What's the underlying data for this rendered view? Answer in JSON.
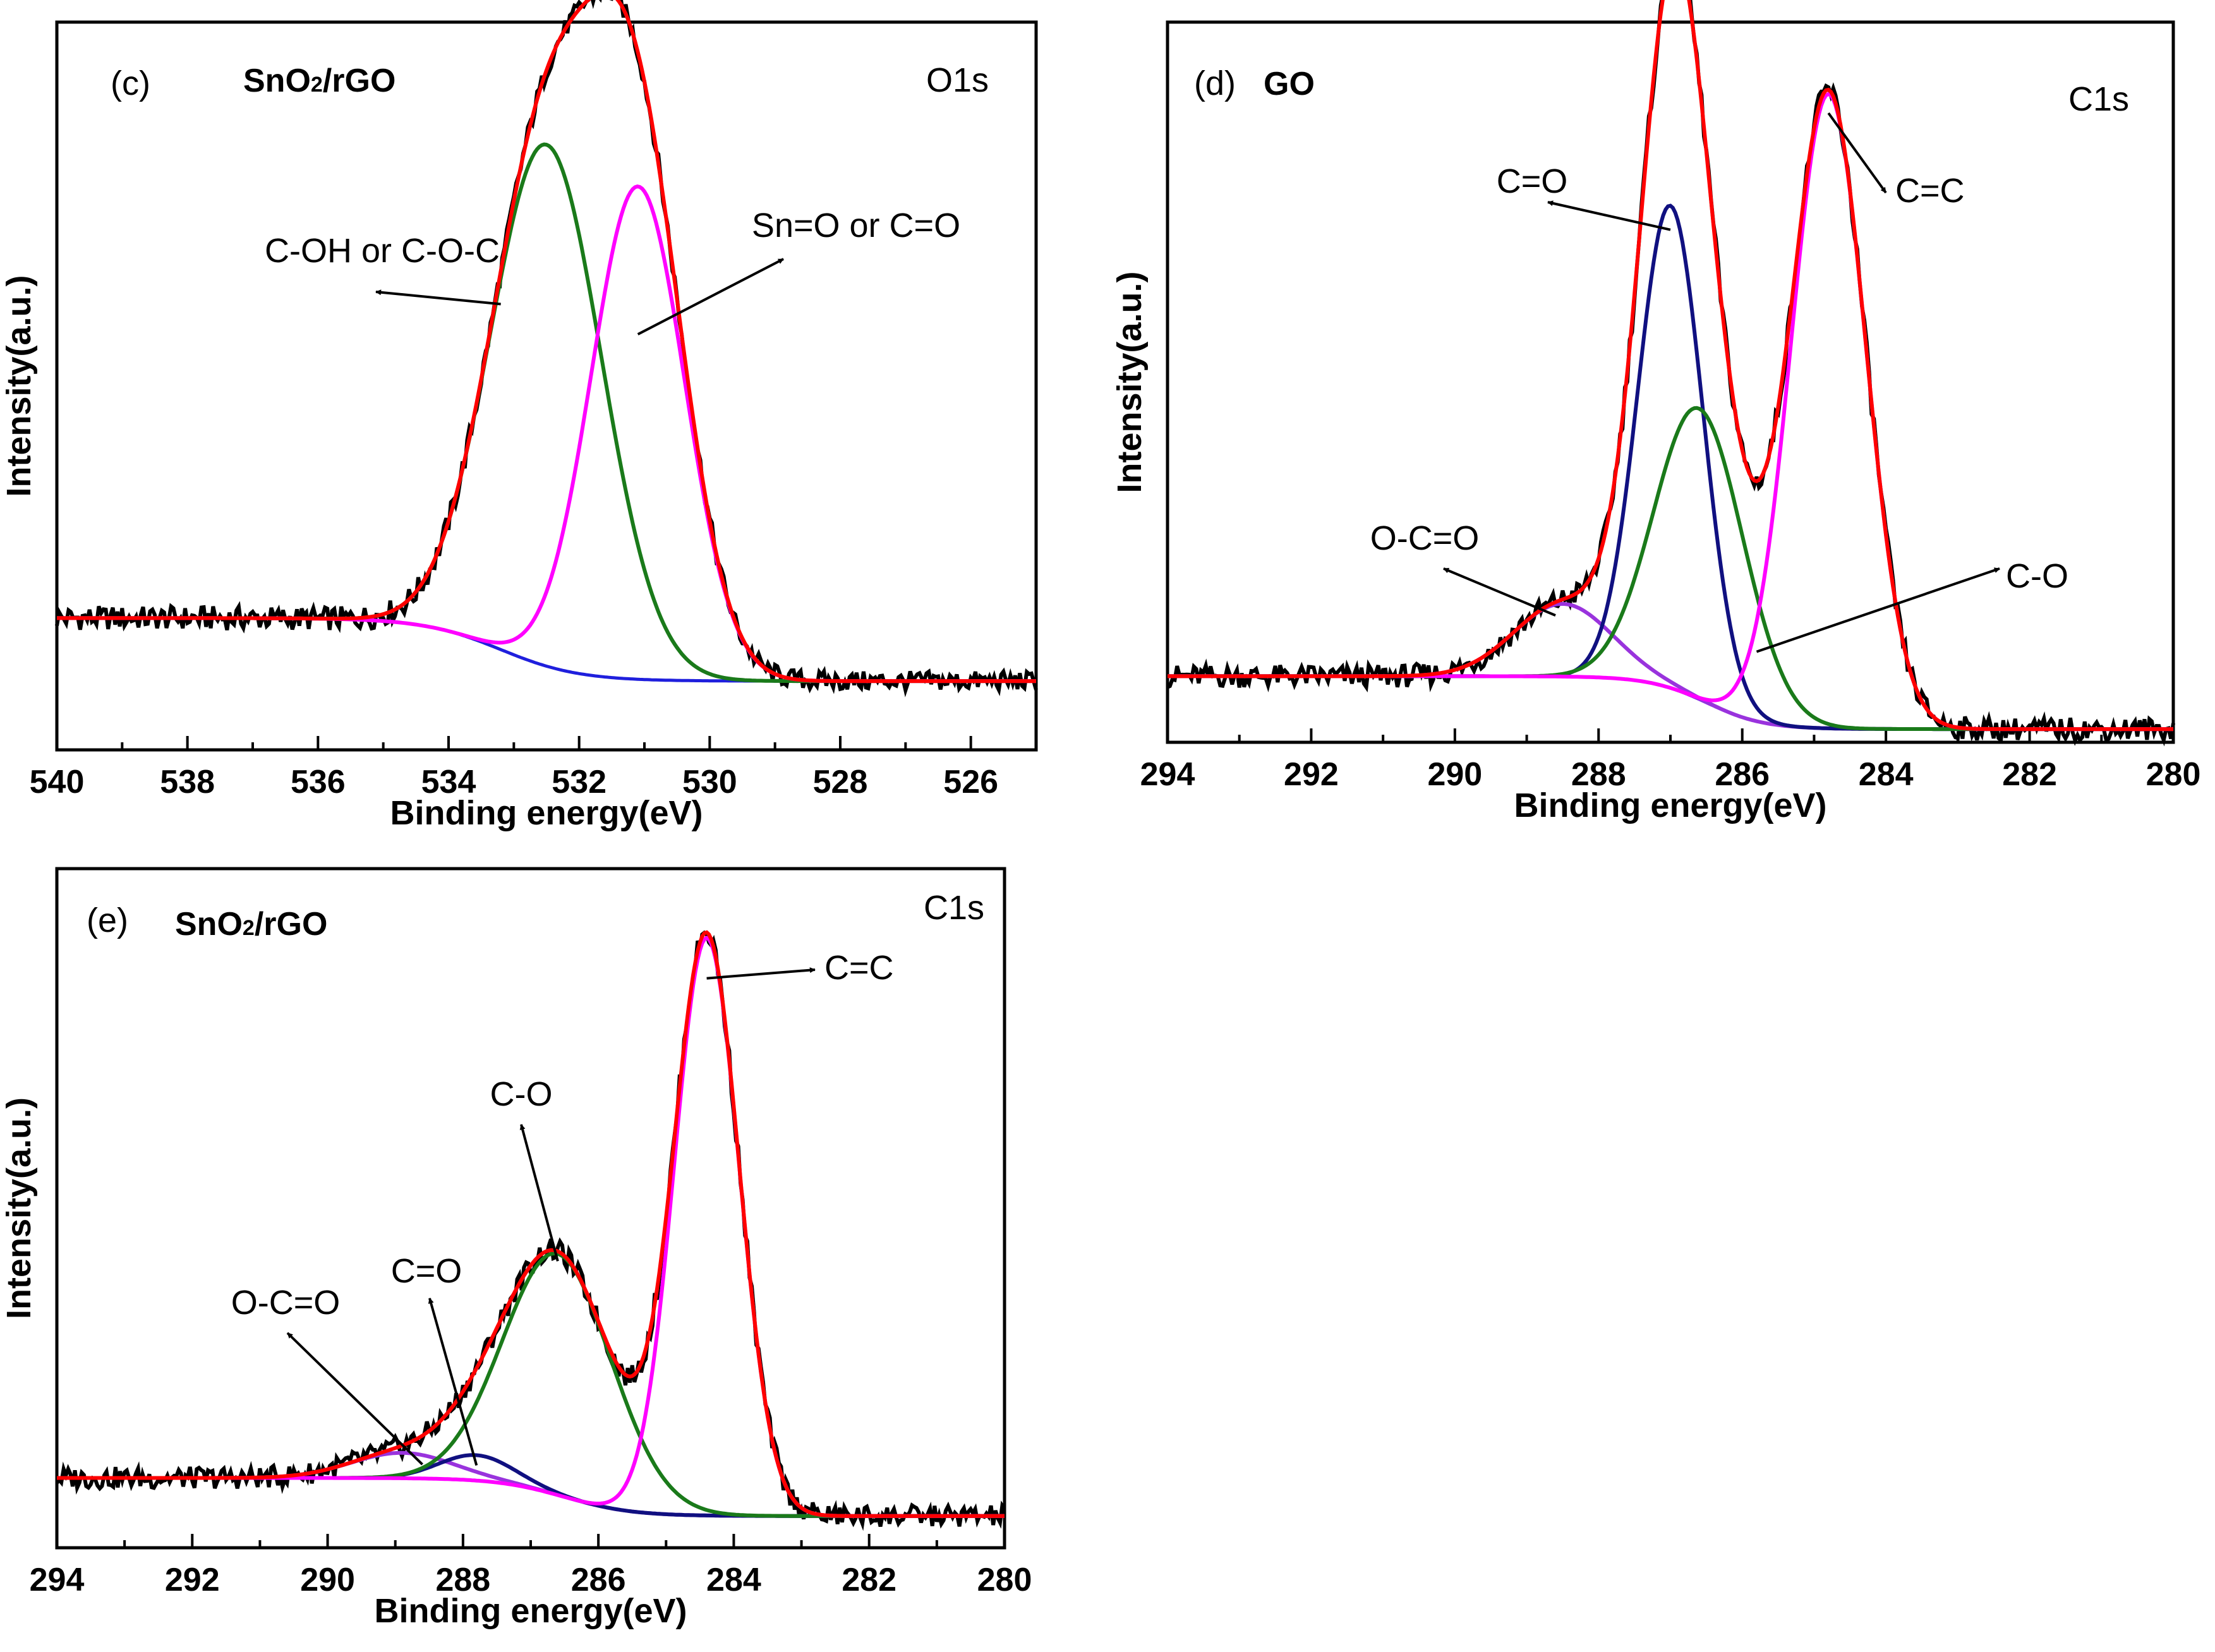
{
  "chart_data": [
    {
      "id": "c",
      "type": "line",
      "panel_label": "(c)",
      "sample": {
        "pre": "SnO",
        "sub": "2",
        "post": "/rGO"
      },
      "region": "O1s",
      "xlabel": "Binding energy(eV)",
      "ylabel": "Intensity(a.u.)",
      "xlim": [
        540,
        525
      ],
      "x_ticks": [
        540,
        538,
        536,
        534,
        532,
        530,
        528,
        526
      ],
      "ylim": [
        -0.12,
        1.15
      ],
      "background": {
        "type": "step",
        "low": 0.0,
        "high": 0.11,
        "center": 533.2,
        "width": 1.8
      },
      "components": [
        {
          "name": "C-OH or C-O-C",
          "color": "#1a7a1a",
          "center": 532.5,
          "amp": 0.91,
          "sigma": 0.85
        },
        {
          "name": "Sn=O or C=O",
          "color": "#ff00ff",
          "center": 531.1,
          "amp": 0.86,
          "sigma": 0.72
        }
      ],
      "fit_color": "#ff0000",
      "raw_color": "#000000",
      "background_color": "#1f1fdd",
      "annotations": [
        {
          "text": "C-OH or C-O-C",
          "target_x": 533.2
        },
        {
          "text": "Sn=O or C=O",
          "target_x": 531.1
        }
      ]
    },
    {
      "id": "d",
      "type": "line",
      "panel_label": "(d)",
      "sample": {
        "pre": "GO",
        "sub": "",
        "post": ""
      },
      "region": "C1s",
      "xlabel": "Binding energy(eV)",
      "ylabel": "Intensity(a.u.)",
      "xlim": [
        294,
        280
      ],
      "x_ticks": [
        294,
        292,
        290,
        288,
        286,
        284,
        282,
        280
      ],
      "ylim": [
        -0.02,
        1.07
      ],
      "background": {
        "type": "step",
        "low": 0.0,
        "high": 0.08,
        "center": 286.5,
        "width": 1.2
      },
      "components": [
        {
          "name": "O-C=O",
          "color": "#9933dd",
          "center": 288.5,
          "amp": 0.11,
          "sigma": 0.68
        },
        {
          "name": "C=O",
          "color": "#101080",
          "center": 287.0,
          "amp": 0.73,
          "sigma": 0.45
        },
        {
          "name": "C-O",
          "color": "#1a7a1a",
          "center": 286.6,
          "amp": 0.44,
          "sigma": 0.62
        },
        {
          "name": "C=C",
          "color": "#ff00ff",
          "center": 284.8,
          "amp": 0.96,
          "sigma": 0.52
        }
      ],
      "fit_color": "#ff0000",
      "raw_color": "#000000",
      "background_color": "#8a2be2",
      "annotations": [
        {
          "text": "C=O",
          "target_x": 287.0
        },
        {
          "text": "C=C",
          "target_x": 284.8
        },
        {
          "text": "O-C=O",
          "target_x": 288.6
        },
        {
          "text": "C-O",
          "target_x": 285.8
        }
      ]
    },
    {
      "id": "e",
      "type": "line",
      "panel_label": "(e)",
      "sample": {
        "pre": "SnO",
        "sub": "2",
        "post": "/rGO"
      },
      "region": "C1s",
      "xlabel": "Binding energy(eV)",
      "ylabel": "Intensity(a.u.)",
      "xlim": [
        294,
        280
      ],
      "x_ticks": [
        294,
        292,
        290,
        288,
        286,
        284,
        282,
        280
      ],
      "ylim": [
        -0.05,
        1.02
      ],
      "background": {
        "type": "step",
        "low": 0.0,
        "high": 0.06,
        "center": 286.5,
        "width": 1.5
      },
      "components": [
        {
          "name": "O-C=O",
          "color": "#9933dd",
          "center": 288.9,
          "amp": 0.04,
          "sigma": 0.75
        },
        {
          "name": "C=O",
          "color": "#101080",
          "center": 287.8,
          "amp": 0.04,
          "sigma": 0.55
        },
        {
          "name": "C-O",
          "color": "#1a7a1a",
          "center": 286.6,
          "amp": 0.38,
          "sigma": 0.8
        },
        {
          "name": "C=C",
          "color": "#ff00ff",
          "center": 284.4,
          "amp": 0.91,
          "sigma": 0.48
        }
      ],
      "fit_color": "#ff0000",
      "raw_color": "#000000",
      "background_color": "#8a2be2",
      "annotations": [
        {
          "text": "C=C",
          "target_x": 284.4
        },
        {
          "text": "C-O",
          "target_x": 286.6
        },
        {
          "text": "C=O",
          "target_x": 287.8
        },
        {
          "text": "O-C=O",
          "target_x": 288.6
        }
      ]
    }
  ]
}
